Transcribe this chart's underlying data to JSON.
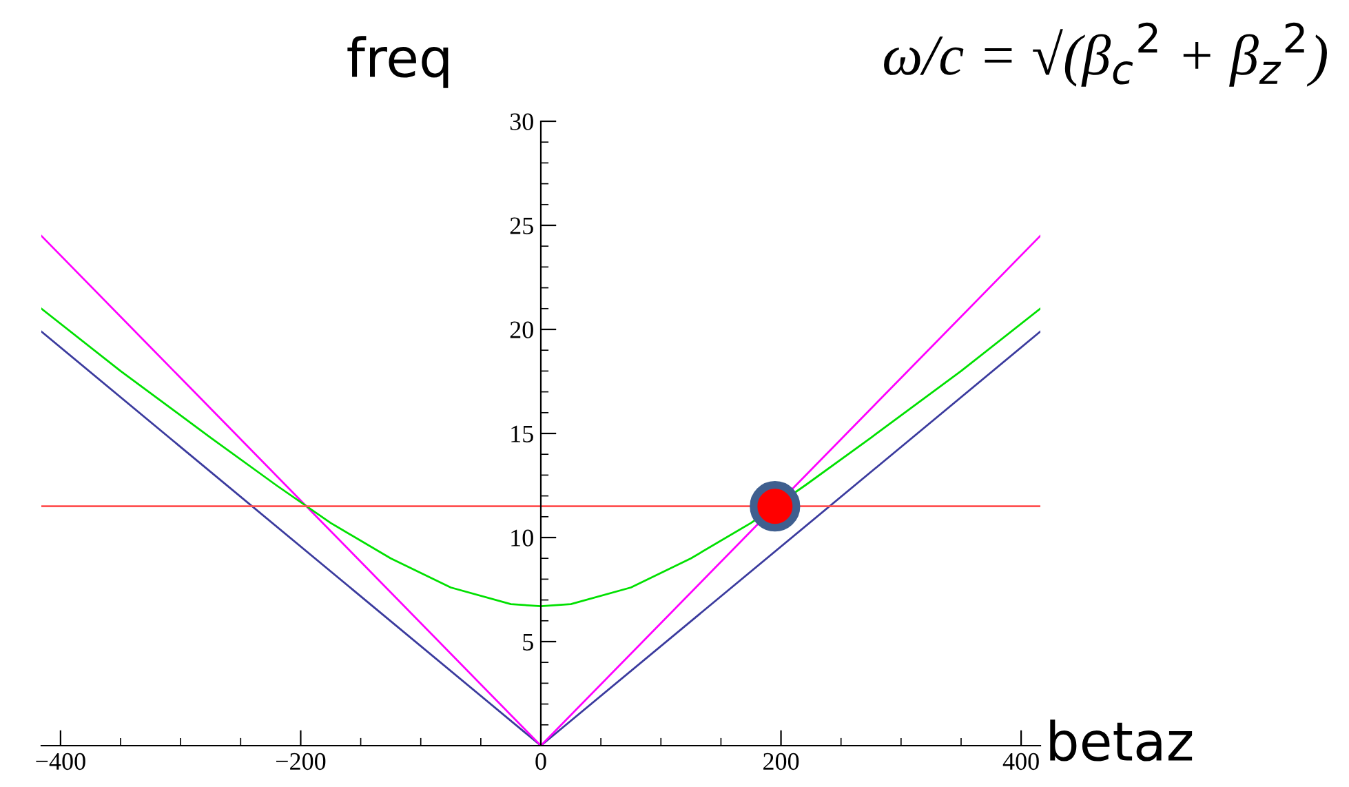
{
  "chart_data": {
    "type": "line",
    "xlabel": "betaz",
    "ylabel": "freq",
    "annotations": [
      "ω/c = √(β$_{c}$$^{2}$ + β$_{z}$$^{2}$)"
    ],
    "series": [
      {
        "type": "line",
        "color": "#3b3b9e",
        "x": [
          -416,
          0,
          416
        ],
        "values": [
          19.9,
          0,
          19.9
        ]
      },
      {
        "type": "line",
        "color": "#ff00ff",
        "x": [
          -416,
          0,
          416
        ],
        "values": [
          24.5,
          0,
          24.5
        ]
      },
      {
        "type": "line",
        "color": "#00e000",
        "x": [
          -416,
          -350,
          -275,
          -220,
          -175,
          -125,
          -75,
          -25,
          0,
          25,
          75,
          125,
          175,
          220,
          275,
          350,
          416
        ],
        "values": [
          21.0,
          18.0,
          14.8,
          12.5,
          10.7,
          9.0,
          7.6,
          6.8,
          6.7,
          6.8,
          7.6,
          9.0,
          10.7,
          12.5,
          14.8,
          18.0,
          21.0
        ]
      },
      {
        "type": "line",
        "color": "#ff5050",
        "x": [
          -416,
          416
        ],
        "values": [
          11.5,
          11.5
        ]
      },
      {
        "type": "scatter",
        "color": "#ff0000",
        "x": [
          195
        ],
        "values": [
          11.5
        ]
      }
    ],
    "xlim": [
      -416,
      416
    ],
    "ylim": [
      0,
      30
    ],
    "xticks": [
      {
        "value": -400,
        "label": "−400"
      },
      {
        "value": -200,
        "label": "−200"
      },
      0,
      200,
      400
    ],
    "yticks": [
      5,
      10,
      15,
      20,
      25,
      30
    ],
    "grid": false
  }
}
